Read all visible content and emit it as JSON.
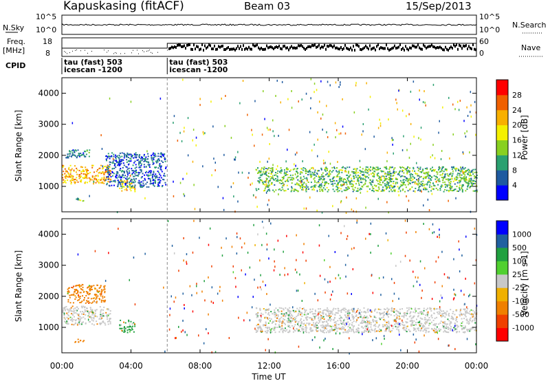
{
  "header": {
    "station": "Kapuskasing (fitACF)",
    "beam": "Beam 03",
    "date": "15/Sep/2013"
  },
  "strips": {
    "nsky_label": "N.Sky",
    "nsky_ticks": [
      "10^5",
      "10^0"
    ],
    "nsearch_label": "N.Search",
    "nsearch_ticks": [
      "10^5",
      "10^0"
    ],
    "freq_label": "Freq.",
    "freq_unit": "[MHz]",
    "freq_ticks": [
      "18",
      "8"
    ],
    "nave_label": "Nave",
    "nave_ticks": [
      "60",
      "0"
    ],
    "cpid_label": "CPID",
    "cpid_segments": [
      {
        "start_hour": 0,
        "line1": "tau (fast) 503",
        "line2": "icescan -1200"
      },
      {
        "start_hour": 6.1,
        "line1": "tau (fast) 503",
        "line2": "icescan -1200"
      }
    ]
  },
  "x_axis": {
    "label": "Time UT",
    "ticks": [
      "00:00",
      "04:00",
      "08:00",
      "12:00",
      "16:00",
      "20:00",
      "00:00"
    ]
  },
  "colors": {
    "power_scale": [
      "#0000ff",
      "#1e5aa0",
      "#2aa070",
      "#88d020",
      "#f4f000",
      "#f8b000",
      "#f06000",
      "#ff0000"
    ],
    "velocity_scale": [
      "#ff0000",
      "#f04000",
      "#f08000",
      "#f0b000",
      "#c8c8c8",
      "#50d030",
      "#20a040",
      "#2060a0",
      "#0000ff"
    ]
  },
  "chart_data": [
    {
      "type": "heatmap",
      "name": "power",
      "ylabel": "Slant Range [km]",
      "colorbar_label": "Power [dB]",
      "colorbar_ticks": [
        "28",
        "24",
        "20",
        "16",
        "12",
        "8",
        "4"
      ],
      "ylim": [
        180,
        4500
      ],
      "y_ticks": [
        "1000",
        "2000",
        "3000",
        "4000"
      ],
      "xlim_hours": [
        0,
        24
      ],
      "echo_regions": [
        {
          "t0": 0.0,
          "t1": 2.8,
          "r0": 1100,
          "r1": 1700,
          "value_db": 22
        },
        {
          "t0": 0.2,
          "t1": 1.6,
          "r0": 1900,
          "r1": 2200,
          "value_db": 8
        },
        {
          "t0": 3.3,
          "t1": 4.2,
          "r0": 850,
          "r1": 1250,
          "value_db": 20
        },
        {
          "t0": 2.5,
          "t1": 6.0,
          "r0": 1000,
          "r1": 2100,
          "value_db": 6
        },
        {
          "t0": 0.7,
          "t1": 1.4,
          "r0": 540,
          "r1": 640,
          "value_db": 12
        },
        {
          "t0": 11.2,
          "t1": 24.0,
          "r0": 850,
          "r1": 1650,
          "value_db": 12
        }
      ]
    },
    {
      "type": "heatmap",
      "name": "velocity",
      "ylabel": "Slant Range [km]",
      "colorbar_label": "Velocity [m s-1]",
      "colorbar_ticks": [
        "1000",
        "500",
        "100",
        "25",
        "-25",
        "-100",
        "-500",
        "-1000"
      ],
      "ylim": [
        180,
        4500
      ],
      "y_ticks": [
        "1000",
        "2000",
        "3000",
        "4000"
      ],
      "xlim_hours": [
        0,
        24
      ],
      "echo_regions": [
        {
          "t0": 0.0,
          "t1": 2.8,
          "r0": 1100,
          "r1": 1700,
          "value_ms": 0
        },
        {
          "t0": 0.3,
          "t1": 2.5,
          "r0": 1800,
          "r1": 2400,
          "value_ms": -300
        },
        {
          "t0": 3.3,
          "t1": 4.2,
          "r0": 850,
          "r1": 1250,
          "value_ms": 100
        },
        {
          "t0": 0.7,
          "t1": 1.4,
          "r0": 540,
          "r1": 640,
          "value_ms": -300
        },
        {
          "t0": 11.2,
          "t1": 24.0,
          "r0": 850,
          "r1": 1650,
          "value_ms": 0
        }
      ]
    }
  ]
}
